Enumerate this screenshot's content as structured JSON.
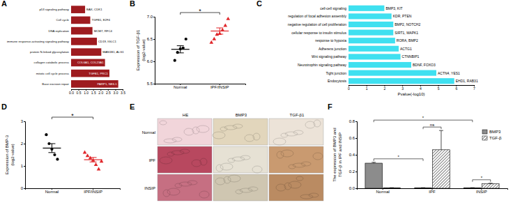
{
  "chart_data": [
    {
      "panel": "A",
      "type": "bar",
      "orientation": "horizontal",
      "categories": [
        "p53 signaling pathway",
        "Cell cycle",
        "DNA replication",
        "immune response-activating signaling pathway",
        "protein N-linked glycosylation",
        "collagen catabolic process",
        "mitotic cell cycle process",
        "Base excision repair"
      ],
      "values": [
        0.95,
        1.3,
        1.45,
        1.75,
        2.05,
        2.3,
        2.6,
        3.2
      ],
      "gene_labels": [
        "BAX, CDK1",
        "TGFB1, E2F4",
        "MCM7, RFC4",
        "CD19, IGLC1",
        "MAN1B1, ALG1",
        "COL6A1, COL23A1",
        "TGFB1, PRC1",
        "PARP1, NEIL1"
      ],
      "color": "#9e1b1f",
      "xlim": [
        0,
        3.5
      ],
      "xticks": [
        {
          "value": 0,
          "label": "0.0"
        },
        0.5,
        {
          "value": 1,
          "label": "1.0"
        },
        1.5,
        {
          "value": 2,
          "label": "2.0"
        },
        2.5,
        {
          "value": 3,
          "label": "3.0"
        },
        3.5
      ]
    },
    {
      "panel": "B",
      "type": "scatter",
      "y_label": [
        "Expression of TGF-β1",
        "(log2-value)"
      ],
      "categories": [
        "Normal",
        "IPF/INSIP"
      ],
      "points": [
        [
          6.02,
          6.2,
          6.28,
          6.3,
          6.5
        ],
        [
          6.42,
          6.5,
          6.6,
          6.62,
          6.7,
          6.8,
          6.95
        ]
      ],
      "means": [
        6.27,
        6.68
      ],
      "errors": [
        0.08,
        0.07
      ],
      "colors": [
        "#000000",
        "#e0262a"
      ],
      "markers": [
        "circle",
        "triangle"
      ],
      "annotation": "*",
      "ylim": [
        5.5,
        7.0
      ],
      "yticks": [
        5.5,
        {
          "value": 6,
          "label": "6.0"
        },
        6.5,
        {
          "value": 7,
          "label": "7.0"
        }
      ]
    },
    {
      "panel": "C",
      "type": "bar",
      "orientation": "horizontal",
      "categories": [
        "cell-cell signaling",
        "regulation of focal adhesion assembly",
        "negative regulation of cell proliferation",
        "cellular response to insulin stimulus",
        "response to hypoxia",
        "Adherens junction",
        "Wnt signaling pathway",
        "Neurotrophin signaling pathway",
        "Tight junction",
        "Endocytosis"
      ],
      "values": [
        2.0,
        2.4,
        2.5,
        2.5,
        2.6,
        2.8,
        2.9,
        3.5,
        4.9,
        5.9
      ],
      "gene_labels": [
        "BMP3, KIT",
        "KDR, PTEN",
        "BMP2, NOTCH2",
        "SIRT1, MAPK1",
        "RORA, BMP2",
        "ACTG1",
        "CTNNBIP1",
        "BDNF, FOXO3",
        "ACTN4, YES1",
        "EHD1, RAB31"
      ],
      "color": "#3fe0f0",
      "x_label": "Pvalue(-log10)",
      "xlim": [
        0,
        7
      ],
      "xticks": [
        0,
        1,
        2,
        3,
        4,
        5,
        6,
        7
      ]
    },
    {
      "panel": "D",
      "type": "scatter",
      "y_label": [
        "Expression of BMP-3",
        "(log2-value)"
      ],
      "categories": [
        "Normal",
        "IPF/INSIP"
      ],
      "points": [
        [
          2.4,
          2.0,
          1.75,
          1.5,
          1.3
        ],
        [
          1.6,
          1.45,
          1.35,
          1.25,
          1.05,
          0.85,
          1.2
        ]
      ],
      "means": [
        1.8,
        1.28
      ],
      "errors": [
        0.2,
        0.1
      ],
      "colors": [
        "#000000",
        "#e0262a"
      ],
      "markers": [
        "circle",
        "triangle"
      ],
      "annotation": "*",
      "ylim": [
        0,
        3
      ],
      "yticks": [
        0,
        1,
        2,
        3
      ]
    },
    {
      "panel": "F",
      "type": "bar",
      "y_label": [
        "The expression of BMP3 and",
        "TGF-β in IPF and INSIP"
      ],
      "categories": [
        "Normal",
        "IPF",
        "INSIP"
      ],
      "series": [
        {
          "name": "BMP3",
          "color": "#8c8c8c",
          "values": [
            0.3,
            0.005,
            0.005
          ],
          "errors": [
            0.01,
            0.002,
            0.002
          ]
        },
        {
          "name": "TGF-β",
          "color": "#ffffff",
          "values": [
            0.005,
            0.46,
            0.055
          ],
          "errors": [
            0.002,
            0.23,
            0.005
          ]
        }
      ],
      "annotations": [
        "*",
        "*",
        "ns",
        "*"
      ],
      "legend": "top-right",
      "ylim": [
        0,
        0.8
      ],
      "yticks": [
        {
          "value": 0,
          "label": "0.0"
        },
        0.2,
        0.4,
        0.6,
        0.8
      ]
    }
  ],
  "image_panel": {
    "panel": "E",
    "columns": [
      "HE",
      "BMP3",
      "TGF-β1"
    ],
    "rows": [
      "Normal",
      "IPF",
      "INSIP"
    ]
  }
}
